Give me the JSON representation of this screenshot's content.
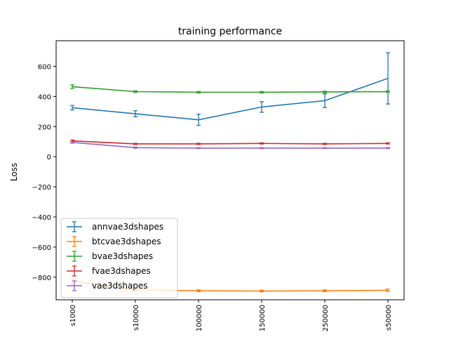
{
  "chart_data": {
    "type": "line",
    "title": "training performance",
    "xlabel": "",
    "ylabel": "Loss",
    "ylim": [
      -950,
      770
    ],
    "yticks": [
      -800,
      -600,
      -400,
      -200,
      0,
      200,
      400,
      600
    ],
    "categories": [
      "s1000",
      "s10000",
      "100000",
      "150000",
      "250000",
      "s50000"
    ],
    "grid": false,
    "legend_position": "lower-left",
    "series": [
      {
        "name": "annvae3dshapes",
        "color": "#1f77b4",
        "values": [
          325,
          285,
          245,
          330,
          372,
          520
        ],
        "errors": [
          15,
          20,
          37,
          35,
          45,
          170
        ]
      },
      {
        "name": "btcvae3dshapes",
        "color": "#ff7f0e",
        "values": [
          -825,
          -885,
          -890,
          -892,
          -890,
          -887
        ],
        "errors": [
          20,
          8,
          6,
          6,
          6,
          8
        ]
      },
      {
        "name": "bvae3dshapes",
        "color": "#2ca02c",
        "values": [
          465,
          432,
          428,
          428,
          430,
          432
        ],
        "errors": [
          12,
          5,
          5,
          5,
          5,
          5
        ]
      },
      {
        "name": "fvae3dshapes",
        "color": "#d62728",
        "values": [
          105,
          85,
          85,
          88,
          85,
          88
        ],
        "errors": [
          6,
          4,
          4,
          4,
          4,
          4
        ]
      },
      {
        "name": "vae3dshapes",
        "color": "#9467bd",
        "values": [
          95,
          60,
          57,
          57,
          57,
          57
        ],
        "errors": [
          5,
          4,
          3,
          3,
          3,
          3
        ]
      }
    ]
  }
}
